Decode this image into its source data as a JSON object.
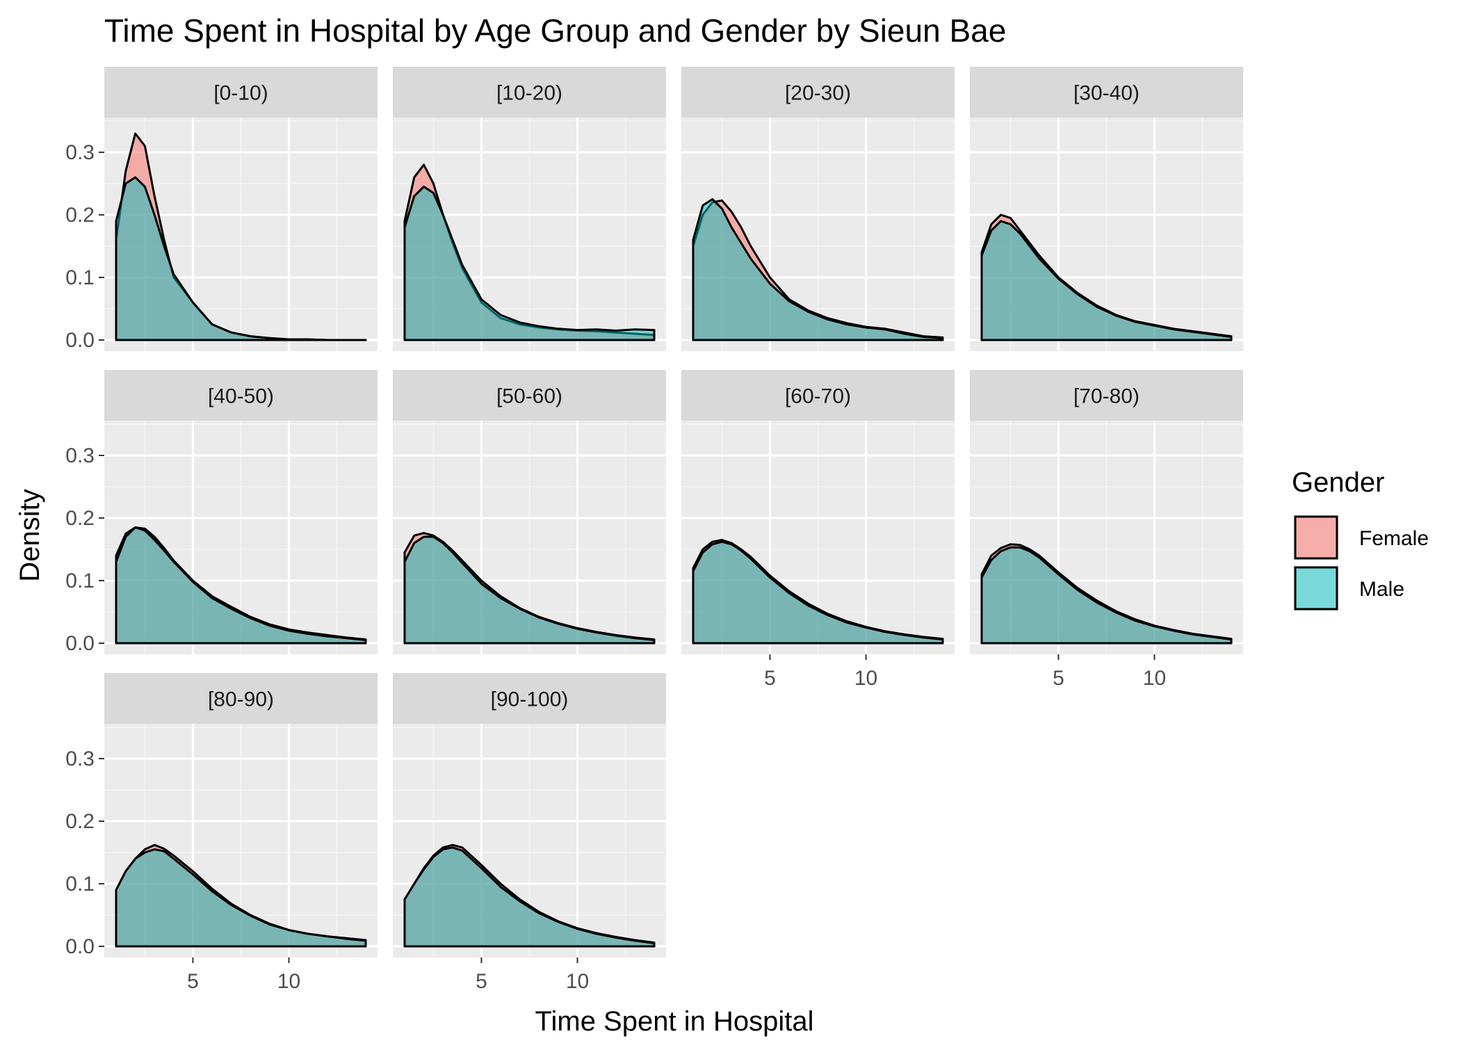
{
  "chart_data": {
    "type": "area",
    "subtype": "faceted density",
    "title": "Time Spent in Hospital by Age Group and Gender by Sieun Bae",
    "xlabel": "Time Spent in Hospital",
    "ylabel": "Density",
    "xlim": [
      1,
      14
    ],
    "ylim": [
      0,
      0.35
    ],
    "x_ticks": [
      5,
      10
    ],
    "y_ticks": [
      "0.0",
      "0.1",
      "0.2",
      "0.3"
    ],
    "facet_layout": {
      "ncol": 4,
      "nrow": 3
    },
    "legend": {
      "title": "Gender",
      "position": "right",
      "items": [
        {
          "label": "Female",
          "color": "#F8766D"
        },
        {
          "label": "Male",
          "color": "#00BFC4"
        }
      ]
    },
    "x": [
      1,
      1.5,
      2,
      2.5,
      3,
      3.5,
      4,
      5,
      6,
      7,
      8,
      9,
      10,
      11,
      12,
      13,
      14
    ],
    "panels": [
      {
        "label": "[0-10)",
        "series": [
          {
            "name": "Female",
            "values": [
              0.16,
              0.27,
              0.33,
              0.31,
              0.23,
              0.16,
              0.1,
              0.06,
              0.025,
              0.012,
              0.006,
              0.003,
              0.001,
              0.001,
              0.0,
              0.0,
              0.0
            ]
          },
          {
            "name": "Male",
            "values": [
              0.19,
              0.25,
              0.26,
              0.245,
              0.2,
              0.15,
              0.105,
              0.06,
              0.025,
              0.012,
              0.006,
              0.003,
              0.001,
              0.001,
              0.0,
              0.0,
              0.0
            ]
          }
        ]
      },
      {
        "label": "[10-20)",
        "series": [
          {
            "name": "Female",
            "values": [
              0.19,
              0.26,
              0.28,
              0.25,
              0.2,
              0.155,
              0.115,
              0.06,
              0.035,
              0.025,
              0.02,
              0.017,
              0.015,
              0.014,
              0.012,
              0.01,
              0.008
            ]
          },
          {
            "name": "Male",
            "values": [
              0.18,
              0.23,
              0.245,
              0.235,
              0.2,
              0.16,
              0.12,
              0.065,
              0.04,
              0.028,
              0.022,
              0.018,
              0.016,
              0.017,
              0.015,
              0.017,
              0.016
            ]
          }
        ]
      },
      {
        "label": "[20-30)",
        "series": [
          {
            "name": "Female",
            "values": [
              0.15,
              0.2,
              0.22,
              0.223,
              0.205,
              0.18,
              0.15,
              0.1,
              0.065,
              0.047,
              0.035,
              0.027,
              0.021,
              0.018,
              0.012,
              0.006,
              0.004
            ]
          },
          {
            "name": "Male",
            "values": [
              0.16,
              0.215,
              0.225,
              0.21,
              0.18,
              0.155,
              0.13,
              0.09,
              0.062,
              0.045,
              0.033,
              0.025,
              0.02,
              0.017,
              0.01,
              0.005,
              0.003
            ]
          }
        ]
      },
      {
        "label": "[30-40)",
        "series": [
          {
            "name": "Female",
            "values": [
              0.14,
              0.185,
              0.2,
              0.195,
              0.175,
              0.155,
              0.135,
              0.1,
              0.075,
              0.055,
              0.04,
              0.03,
              0.024,
              0.018,
              0.014,
              0.01,
              0.006
            ]
          },
          {
            "name": "Male",
            "values": [
              0.135,
              0.175,
              0.19,
              0.185,
              0.17,
              0.15,
              0.13,
              0.098,
              0.073,
              0.053,
              0.039,
              0.029,
              0.023,
              0.017,
              0.013,
              0.009,
              0.005
            ]
          }
        ]
      },
      {
        "label": "[40-50)",
        "series": [
          {
            "name": "Female",
            "values": [
              0.14,
              0.175,
              0.185,
              0.183,
              0.17,
              0.152,
              0.132,
              0.1,
              0.075,
              0.058,
              0.042,
              0.03,
              0.022,
              0.017,
              0.013,
              0.009,
              0.006
            ]
          },
          {
            "name": "Male",
            "values": [
              0.13,
              0.17,
              0.185,
              0.18,
              0.165,
              0.148,
              0.13,
              0.098,
              0.072,
              0.055,
              0.04,
              0.028,
              0.02,
              0.015,
              0.011,
              0.008,
              0.005
            ]
          }
        ]
      },
      {
        "label": "[50-60)",
        "series": [
          {
            "name": "Female",
            "values": [
              0.145,
              0.172,
              0.176,
              0.172,
              0.162,
              0.148,
              0.132,
              0.1,
              0.075,
              0.056,
              0.042,
              0.032,
              0.024,
              0.018,
              0.013,
              0.009,
              0.006
            ]
          },
          {
            "name": "Male",
            "values": [
              0.13,
              0.16,
              0.17,
              0.17,
              0.16,
              0.145,
              0.128,
              0.095,
              0.072,
              0.055,
              0.041,
              0.031,
              0.023,
              0.017,
              0.012,
              0.008,
              0.005
            ]
          }
        ]
      },
      {
        "label": "[60-70)",
        "series": [
          {
            "name": "Female",
            "values": [
              0.12,
              0.15,
              0.162,
              0.165,
              0.16,
              0.15,
              0.138,
              0.108,
              0.083,
              0.063,
              0.047,
              0.035,
              0.026,
              0.019,
              0.014,
              0.01,
              0.007
            ]
          },
          {
            "name": "Male",
            "values": [
              0.115,
              0.145,
              0.158,
              0.162,
              0.158,
              0.148,
              0.135,
              0.105,
              0.08,
              0.06,
              0.045,
              0.033,
              0.025,
              0.018,
              0.013,
              0.009,
              0.006
            ]
          }
        ]
      },
      {
        "label": "[70-80)",
        "series": [
          {
            "name": "Female",
            "values": [
              0.11,
              0.14,
              0.152,
              0.158,
              0.157,
              0.15,
              0.14,
              0.113,
              0.088,
              0.068,
              0.051,
              0.038,
              0.028,
              0.021,
              0.015,
              0.011,
              0.007
            ]
          },
          {
            "name": "Male",
            "values": [
              0.105,
              0.133,
              0.147,
              0.153,
              0.153,
              0.147,
              0.137,
              0.11,
              0.085,
              0.065,
              0.049,
              0.036,
              0.027,
              0.02,
              0.014,
              0.01,
              0.006
            ]
          }
        ]
      },
      {
        "label": "[80-90)",
        "series": [
          {
            "name": "Female",
            "values": [
              0.09,
              0.12,
              0.14,
              0.155,
              0.162,
              0.156,
              0.145,
              0.12,
              0.092,
              0.068,
              0.05,
              0.036,
              0.026,
              0.02,
              0.016,
              0.013,
              0.01
            ]
          },
          {
            "name": "Male",
            "values": [
              0.09,
              0.12,
              0.14,
              0.15,
              0.155,
              0.152,
              0.14,
              0.115,
              0.088,
              0.066,
              0.049,
              0.035,
              0.026,
              0.02,
              0.016,
              0.012,
              0.009
            ]
          }
        ]
      },
      {
        "label": "[90-100)",
        "series": [
          {
            "name": "Female",
            "values": [
              0.075,
              0.1,
              0.125,
              0.145,
              0.158,
              0.162,
              0.158,
              0.13,
              0.1,
              0.075,
              0.055,
              0.04,
              0.029,
              0.021,
              0.015,
              0.01,
              0.006
            ]
          },
          {
            "name": "Male",
            "values": [
              0.075,
              0.1,
              0.123,
              0.143,
              0.155,
              0.158,
              0.153,
              0.125,
              0.095,
              0.072,
              0.053,
              0.039,
              0.028,
              0.02,
              0.014,
              0.009,
              0.005
            ]
          }
        ]
      }
    ]
  }
}
